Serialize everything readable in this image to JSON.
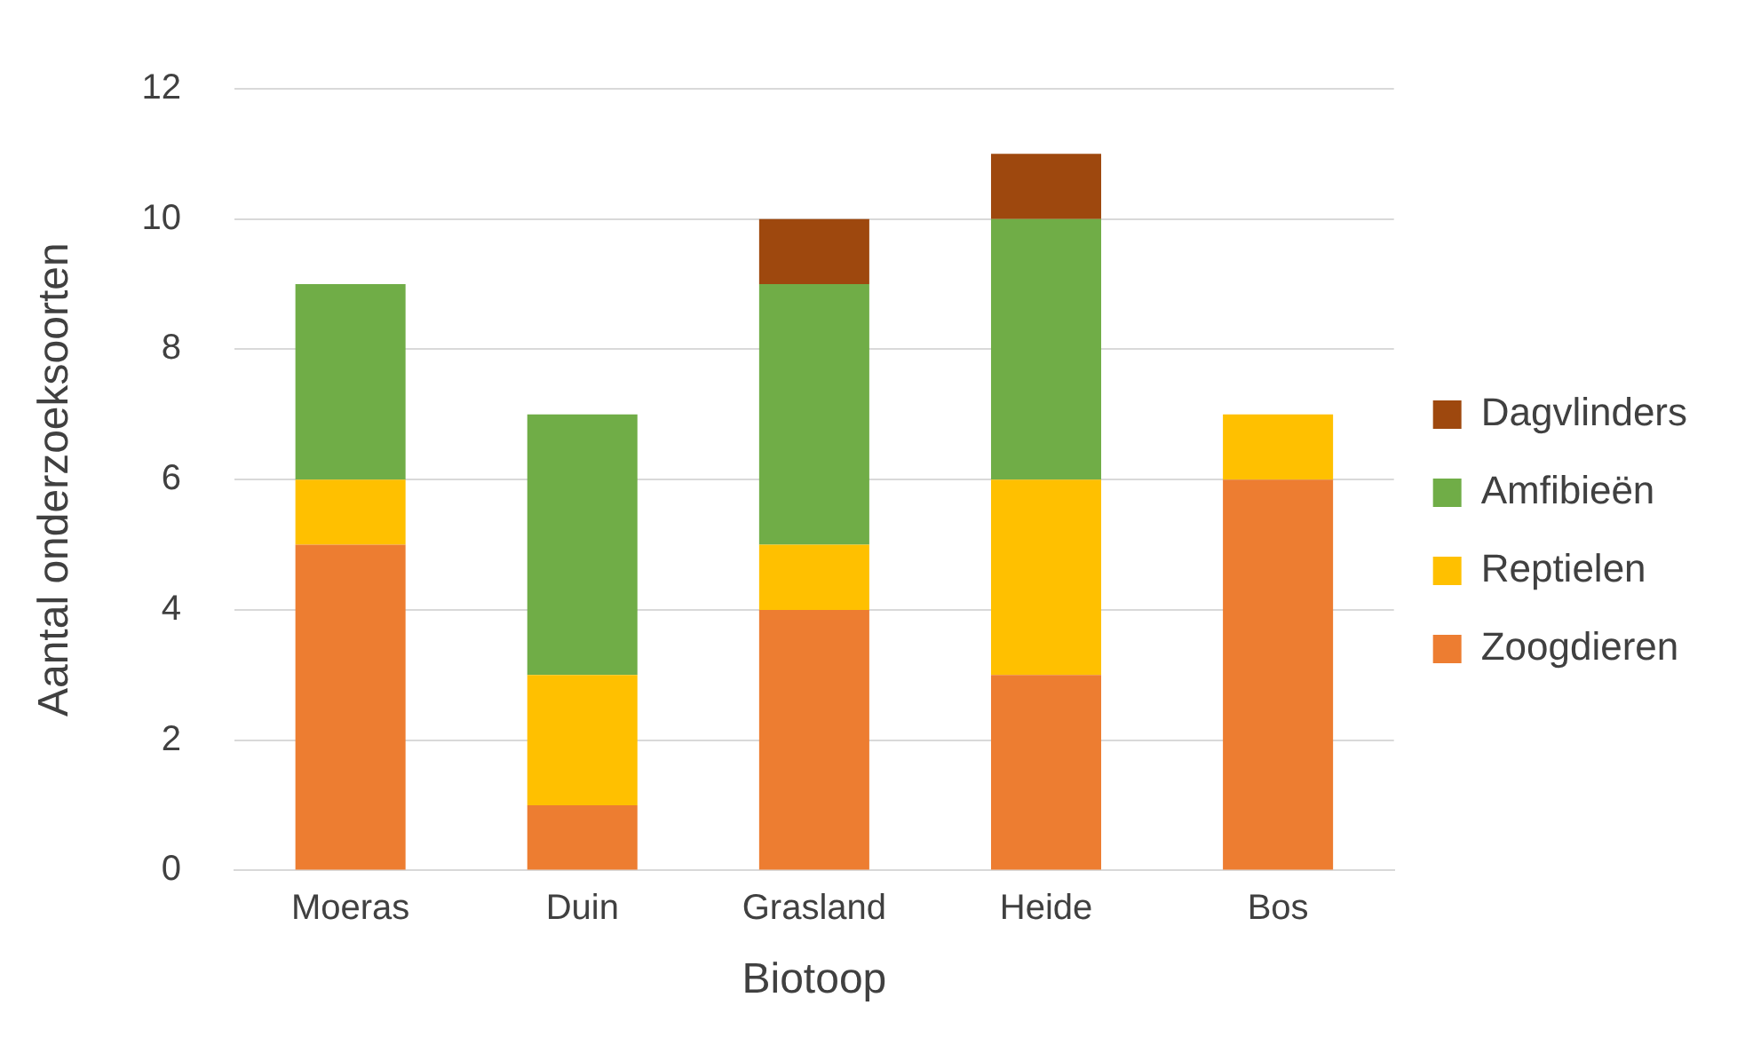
{
  "chart_data": {
    "type": "bar",
    "stacked": true,
    "xlabel": "Biotoop",
    "ylabel": "Aantal onderzoeksoorten",
    "categories": [
      "Moeras",
      "Duin",
      "Grasland",
      "Heide",
      "Bos"
    ],
    "series": [
      {
        "name": "Zoogdieren",
        "color": "#ed7d31",
        "values": [
          5,
          1,
          4,
          3,
          6
        ]
      },
      {
        "name": "Reptielen",
        "color": "#ffc000",
        "values": [
          1,
          2,
          1,
          3,
          1
        ]
      },
      {
        "name": "Amfibieën",
        "color": "#70ad47",
        "values": [
          3,
          4,
          4,
          4,
          0
        ]
      },
      {
        "name": "Dagvlinders",
        "color": "#9e480e",
        "values": [
          0,
          0,
          1,
          1,
          0
        ]
      }
    ],
    "ylim": [
      0,
      12
    ],
    "yticks": [
      0,
      2,
      4,
      6,
      8,
      10,
      12
    ],
    "grid": "y",
    "legend": "right"
  }
}
